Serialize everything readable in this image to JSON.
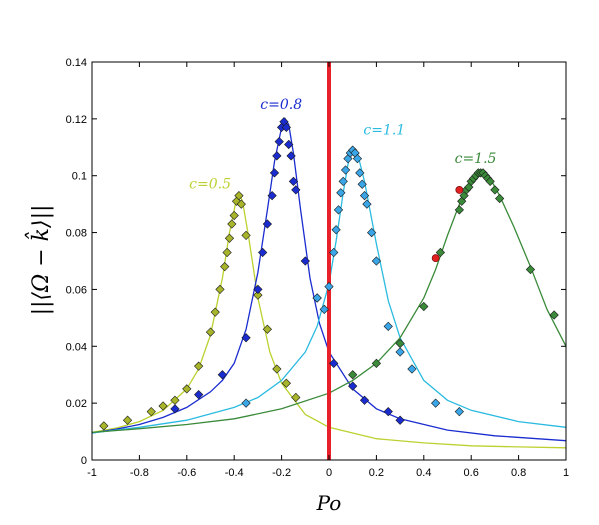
{
  "chart_data": {
    "type": "line",
    "xlabel": "Po",
    "ylabel": "||⟨Ω − k̂⟩||",
    "xlim": [
      -1,
      1
    ],
    "ylim": [
      0,
      0.14
    ],
    "xticks": [
      -1,
      -0.8,
      -0.6,
      -0.4,
      -0.2,
      0,
      0.2,
      0.4,
      0.6,
      0.8,
      1
    ],
    "xtick_labels": [
      "-1",
      "-0.8",
      "-0.6",
      "-0.4",
      "-0.2",
      "0",
      "0.2",
      "0.4",
      "0.6",
      "0.8",
      "1"
    ],
    "yticks": [
      0,
      0.02,
      0.04,
      0.06,
      0.08,
      0.1,
      0.12,
      0.14
    ],
    "ytick_labels": [
      "0",
      "0.02",
      "0.04",
      "0.06",
      "0.08",
      "0.1",
      "0.12",
      "0.14"
    ],
    "grid": false,
    "vertical_line": {
      "x": 0,
      "color": "#e8202a"
    },
    "series": [
      {
        "name": "c=0.5",
        "color": "#bcd12f",
        "marker_color": "#a8b52a",
        "curve": [
          [
            -1,
            0.0097
          ],
          [
            -0.9,
            0.0112
          ],
          [
            -0.8,
            0.0135
          ],
          [
            -0.7,
            0.0175
          ],
          [
            -0.6,
            0.025
          ],
          [
            -0.55,
            0.032
          ],
          [
            -0.5,
            0.044
          ],
          [
            -0.45,
            0.064
          ],
          [
            -0.42,
            0.08
          ],
          [
            -0.395,
            0.09
          ],
          [
            -0.38,
            0.094
          ],
          [
            -0.365,
            0.091
          ],
          [
            -0.34,
            0.079
          ],
          [
            -0.3,
            0.057
          ],
          [
            -0.25,
            0.038
          ],
          [
            -0.2,
            0.027
          ],
          [
            -0.1,
            0.016
          ],
          [
            0,
            0.0115
          ],
          [
            0.2,
            0.0075
          ],
          [
            0.4,
            0.006
          ],
          [
            0.6,
            0.005
          ],
          [
            0.8,
            0.0046
          ],
          [
            1,
            0.0043
          ]
        ],
        "points": [
          [
            -0.95,
            0.012
          ],
          [
            -0.85,
            0.014
          ],
          [
            -0.75,
            0.017
          ],
          [
            -0.7,
            0.019
          ],
          [
            -0.65,
            0.021
          ],
          [
            -0.6,
            0.025
          ],
          [
            -0.55,
            0.033
          ],
          [
            -0.5,
            0.045
          ],
          [
            -0.48,
            0.052
          ],
          [
            -0.46,
            0.06
          ],
          [
            -0.44,
            0.068
          ],
          [
            -0.43,
            0.073
          ],
          [
            -0.42,
            0.078
          ],
          [
            -0.41,
            0.083
          ],
          [
            -0.4,
            0.086
          ],
          [
            -0.39,
            0.091
          ],
          [
            -0.38,
            0.093
          ],
          [
            -0.37,
            0.09
          ],
          [
            -0.35,
            0.079
          ],
          [
            -0.3,
            0.058
          ],
          [
            -0.26,
            0.046
          ],
          [
            -0.22,
            0.032
          ],
          [
            -0.18,
            0.027
          ],
          [
            -0.14,
            0.022
          ]
        ]
      },
      {
        "name": "c=0.8",
        "color": "#1a2ccf",
        "marker_color": "#1a2ccf",
        "curve": [
          [
            -1,
            0.0095
          ],
          [
            -0.9,
            0.0108
          ],
          [
            -0.8,
            0.0125
          ],
          [
            -0.7,
            0.015
          ],
          [
            -0.6,
            0.0185
          ],
          [
            -0.5,
            0.024
          ],
          [
            -0.45,
            0.028
          ],
          [
            -0.4,
            0.034
          ],
          [
            -0.35,
            0.046
          ],
          [
            -0.3,
            0.066
          ],
          [
            -0.26,
            0.088
          ],
          [
            -0.23,
            0.105
          ],
          [
            -0.2,
            0.117
          ],
          [
            -0.185,
            0.12
          ],
          [
            -0.17,
            0.118
          ],
          [
            -0.15,
            0.108
          ],
          [
            -0.12,
            0.088
          ],
          [
            -0.08,
            0.064
          ],
          [
            -0.04,
            0.048
          ],
          [
            0,
            0.038
          ],
          [
            0.1,
            0.025
          ],
          [
            0.2,
            0.018
          ],
          [
            0.3,
            0.0145
          ],
          [
            0.5,
            0.0105
          ],
          [
            0.7,
            0.0085
          ],
          [
            1,
            0.0068
          ]
        ],
        "points": [
          [
            -0.65,
            0.018
          ],
          [
            -0.55,
            0.023
          ],
          [
            -0.45,
            0.03
          ],
          [
            -0.35,
            0.043
          ],
          [
            -0.3,
            0.06
          ],
          [
            -0.28,
            0.073
          ],
          [
            -0.26,
            0.083
          ],
          [
            -0.24,
            0.093
          ],
          [
            -0.23,
            0.101
          ],
          [
            -0.22,
            0.107
          ],
          [
            -0.21,
            0.112
          ],
          [
            -0.2,
            0.117
          ],
          [
            -0.19,
            0.119
          ],
          [
            -0.18,
            0.117
          ],
          [
            -0.17,
            0.111
          ],
          [
            -0.16,
            0.107
          ],
          [
            -0.15,
            0.098
          ],
          [
            -0.14,
            0.095
          ],
          [
            -0.1,
            0.07
          ],
          [
            -0.05,
            0.057
          ],
          [
            0.02,
            0.034
          ],
          [
            0.1,
            0.026
          ],
          [
            0.15,
            0.021
          ],
          [
            0.25,
            0.017
          ],
          [
            0.3,
            0.014
          ]
        ]
      },
      {
        "name": "c=1.1",
        "color": "#2bbbe0",
        "marker_color": "#3aa6e8",
        "curve": [
          [
            -1,
            0.0095
          ],
          [
            -0.8,
            0.0115
          ],
          [
            -0.6,
            0.014
          ],
          [
            -0.4,
            0.0185
          ],
          [
            -0.3,
            0.022
          ],
          [
            -0.2,
            0.028
          ],
          [
            -0.1,
            0.038
          ],
          [
            -0.05,
            0.047
          ],
          [
            0,
            0.062
          ],
          [
            0.03,
            0.077
          ],
          [
            0.06,
            0.094
          ],
          [
            0.08,
            0.104
          ],
          [
            0.1,
            0.11
          ],
          [
            0.12,
            0.108
          ],
          [
            0.15,
            0.098
          ],
          [
            0.2,
            0.076
          ],
          [
            0.25,
            0.056
          ],
          [
            0.3,
            0.043
          ],
          [
            0.4,
            0.028
          ],
          [
            0.5,
            0.021
          ],
          [
            0.6,
            0.0175
          ],
          [
            0.8,
            0.0135
          ],
          [
            1,
            0.0115
          ]
        ],
        "points": [
          [
            -0.35,
            0.02
          ],
          [
            -0.05,
            0.057
          ],
          [
            -0.02,
            0.053
          ],
          [
            0.0,
            0.061
          ],
          [
            0.02,
            0.073
          ],
          [
            0.03,
            0.081
          ],
          [
            0.04,
            0.088
          ],
          [
            0.05,
            0.094
          ],
          [
            0.06,
            0.098
          ],
          [
            0.07,
            0.102
          ],
          [
            0.08,
            0.106
          ],
          [
            0.09,
            0.108
          ],
          [
            0.1,
            0.109
          ],
          [
            0.11,
            0.108
          ],
          [
            0.12,
            0.106
          ],
          [
            0.13,
            0.101
          ],
          [
            0.14,
            0.097
          ],
          [
            0.15,
            0.093
          ],
          [
            0.16,
            0.09
          ],
          [
            0.18,
            0.08
          ],
          [
            0.2,
            0.07
          ],
          [
            0.25,
            0.047
          ],
          [
            0.3,
            0.038
          ],
          [
            0.35,
            0.032
          ],
          [
            0.45,
            0.02
          ],
          [
            0.55,
            0.017
          ]
        ]
      },
      {
        "name": "c=1.5",
        "color": "#3a8a3a",
        "marker_color": "#3a8a3a",
        "curve": [
          [
            -1,
            0.0097
          ],
          [
            -0.8,
            0.011
          ],
          [
            -0.6,
            0.0125
          ],
          [
            -0.4,
            0.0145
          ],
          [
            -0.2,
            0.018
          ],
          [
            0,
            0.0235
          ],
          [
            0.1,
            0.028
          ],
          [
            0.2,
            0.034
          ],
          [
            0.3,
            0.043
          ],
          [
            0.4,
            0.057
          ],
          [
            0.45,
            0.067
          ],
          [
            0.5,
            0.079
          ],
          [
            0.55,
            0.09
          ],
          [
            0.6,
            0.098
          ],
          [
            0.64,
            0.101
          ],
          [
            0.68,
            0.099
          ],
          [
            0.72,
            0.093
          ],
          [
            0.78,
            0.082
          ],
          [
            0.85,
            0.068
          ],
          [
            0.92,
            0.053
          ],
          [
            1,
            0.04
          ]
        ],
        "points": [
          [
            0.1,
            0.03
          ],
          [
            0.2,
            0.034
          ],
          [
            0.3,
            0.041
          ],
          [
            0.4,
            0.054
          ],
          [
            0.47,
            0.073
          ],
          [
            0.55,
            0.088
          ],
          [
            0.56,
            0.091
          ],
          [
            0.57,
            0.093
          ],
          [
            0.58,
            0.095
          ],
          [
            0.59,
            0.096
          ],
          [
            0.6,
            0.098
          ],
          [
            0.61,
            0.099
          ],
          [
            0.62,
            0.1
          ],
          [
            0.63,
            0.101
          ],
          [
            0.64,
            0.101
          ],
          [
            0.65,
            0.101
          ],
          [
            0.66,
            0.1
          ],
          [
            0.67,
            0.099
          ],
          [
            0.68,
            0.098
          ],
          [
            0.7,
            0.095
          ],
          [
            0.72,
            0.092
          ],
          [
            0.85,
            0.067
          ],
          [
            0.95,
            0.051
          ]
        ],
        "red_points": [
          [
            0.55,
            0.095
          ],
          [
            0.45,
            0.071
          ]
        ]
      }
    ],
    "labels": [
      {
        "series": "c=0.5",
        "text": "c=0.5",
        "x": -0.59,
        "y": 0.0955
      },
      {
        "series": "c=0.8",
        "text": "c=0.8",
        "x": -0.29,
        "y": 0.1235
      },
      {
        "series": "c=1.1",
        "text": "c=1.1",
        "x": 0.145,
        "y": 0.1145
      },
      {
        "series": "c=1.5",
        "text": "c=1.5",
        "x": 0.53,
        "y": 0.1045
      }
    ]
  }
}
